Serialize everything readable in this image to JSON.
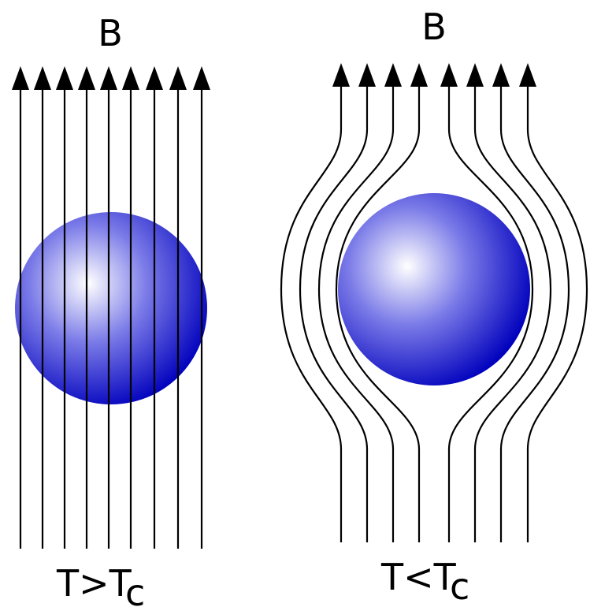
{
  "panels": [
    {
      "id": "left",
      "field_label": "B",
      "temperature_label": {
        "main": "T>T",
        "subscript": "c"
      }
    },
    {
      "id": "right",
      "field_label": "B",
      "temperature_label": {
        "main": "T<T",
        "subscript": "c"
      }
    }
  ],
  "colors": {
    "sphere_highlight": "#ffffff",
    "sphere_mid": "#7b7be8",
    "sphere_edge": "#0000c0",
    "line": "#000000",
    "background": "#ffffff"
  }
}
